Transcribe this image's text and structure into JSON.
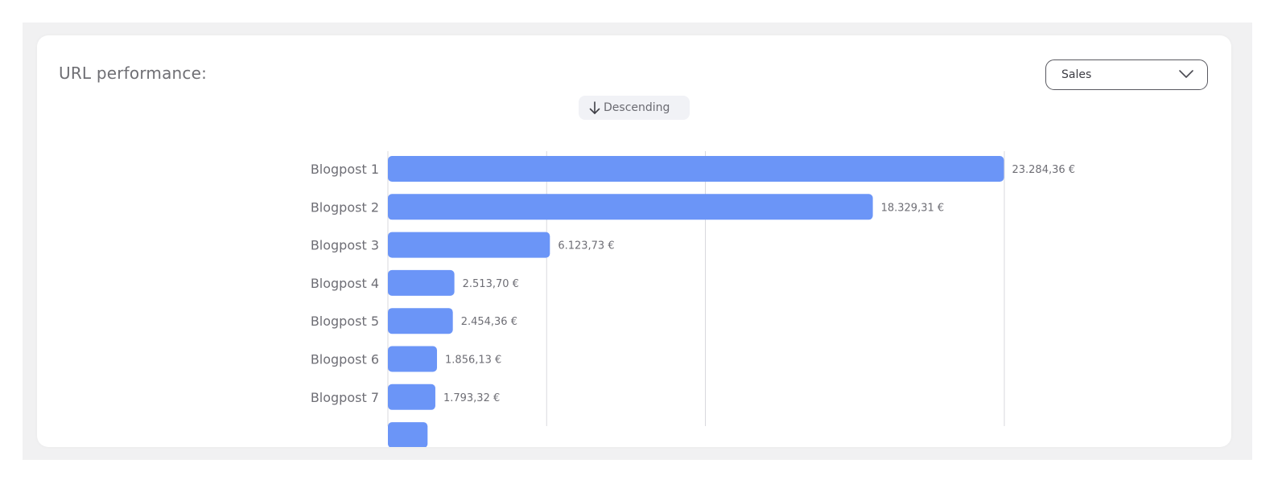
{
  "panel": {
    "title": "URL performance:"
  },
  "metric_select": {
    "selected": "Sales",
    "icon": "chevron-down-icon"
  },
  "sort_toggle": {
    "label": "Descending",
    "icon": "arrow-down-icon"
  },
  "colors": {
    "bar": "#6b95f7",
    "grid": "#d9d9de",
    "label": "#6e6e75",
    "value_label": "#6e6e75"
  },
  "chart_data": {
    "type": "bar",
    "orientation": "horizontal",
    "title": "",
    "xlabel": "",
    "ylabel": "",
    "categories": [
      "Blogpost 1",
      "Blogpost  2",
      "Blogpost 3",
      "Blogpost 4",
      "Blogpost 5",
      "Blogpost 6",
      "Blogpost 7",
      ""
    ],
    "values": [
      23284.36,
      18329.31,
      6123.73,
      2513.7,
      2454.36,
      1856.13,
      1793.32,
      1500
    ],
    "value_labels": [
      "23.284,36 €",
      "18.329,31 €",
      "6.123,73 €",
      "2.513,70 €",
      "2.454,36 €",
      "1.856,13 €",
      "1.793,32 €",
      ""
    ],
    "xlim": [
      0,
      23300
    ],
    "gridlines_x": [
      0,
      6000,
      12000,
      23300
    ],
    "grid": true,
    "legend": "none",
    "sort": "descending",
    "clipped_last_bar": true
  }
}
